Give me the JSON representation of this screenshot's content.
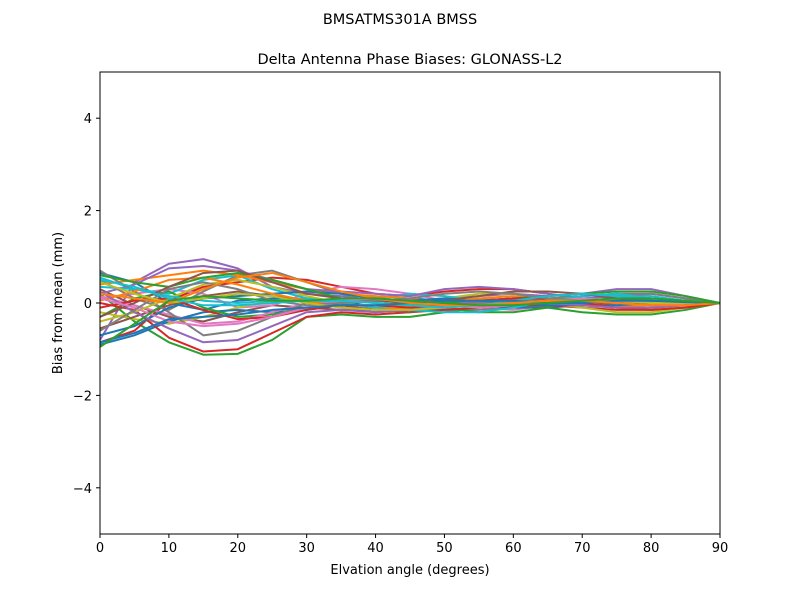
{
  "suptitle": "BMSATMS301A     BMSS",
  "chart_data": {
    "type": "line",
    "title": "Delta Antenna Phase Biases: GLONASS-L2",
    "xlabel": "Elvation angle (degrees)",
    "ylabel": "Bias from mean (mm)",
    "xlim": [
      0,
      90
    ],
    "ylim": [
      -5,
      5
    ],
    "xticks": [
      0,
      10,
      20,
      30,
      40,
      50,
      60,
      70,
      80,
      90
    ],
    "yticks": [
      -4,
      -2,
      0,
      2,
      4
    ],
    "ytick_labels": [
      "−4",
      "−2",
      "0",
      "2",
      "4"
    ],
    "grid": false,
    "legend": false,
    "x": [
      0,
      5,
      10,
      15,
      20,
      25,
      30,
      35,
      40,
      45,
      50,
      55,
      60,
      65,
      70,
      75,
      80,
      85,
      90
    ],
    "series": [
      {
        "values": [
          0.65,
          0.45,
          0.0,
          -0.15,
          0.05,
          0.1,
          0.05,
          -0.1,
          -0.2,
          -0.15,
          -0.05,
          0.05,
          0.1,
          0.05,
          -0.05,
          -0.1,
          -0.1,
          -0.05,
          0.0
        ],
        "color": "#1f77b4"
      },
      {
        "values": [
          0.2,
          -0.4,
          -0.85,
          -1.12,
          -1.1,
          -0.8,
          -0.3,
          -0.25,
          -0.3,
          -0.3,
          -0.2,
          -0.1,
          -0.05,
          -0.1,
          -0.2,
          -0.25,
          -0.25,
          -0.15,
          0.0
        ],
        "color": "#2ca02c"
      },
      {
        "values": [
          -0.85,
          -0.6,
          0.05,
          0.35,
          0.45,
          0.55,
          0.5,
          0.35,
          0.2,
          0.15,
          0.25,
          0.3,
          0.3,
          0.2,
          0.1,
          0.05,
          0.05,
          0.02,
          0.0
        ],
        "color": "#d62728"
      },
      {
        "values": [
          -0.8,
          0.45,
          0.85,
          0.95,
          0.75,
          0.35,
          0.2,
          0.15,
          0.05,
          0.05,
          0.1,
          0.15,
          0.2,
          0.15,
          0.2,
          0.3,
          0.3,
          0.15,
          0.0
        ],
        "color": "#9467bd"
      },
      {
        "values": [
          0.3,
          -0.05,
          -0.3,
          -0.4,
          -0.2,
          -0.05,
          -0.1,
          -0.15,
          -0.1,
          0.0,
          0.05,
          0.0,
          -0.05,
          0.0,
          0.05,
          0.1,
          0.1,
          0.05,
          0.0
        ],
        "color": "#8c564b"
      },
      {
        "values": [
          0.1,
          0.2,
          0.3,
          0.2,
          -0.1,
          -0.05,
          0.2,
          0.35,
          0.3,
          0.2,
          0.05,
          -0.1,
          -0.15,
          -0.05,
          0.05,
          0.1,
          0.05,
          0.0,
          0.0
        ],
        "color": "#e377c2"
      },
      {
        "values": [
          0.5,
          0.1,
          -0.15,
          0.25,
          0.6,
          0.7,
          0.45,
          0.2,
          0.0,
          -0.1,
          -0.15,
          -0.15,
          -0.1,
          -0.05,
          0.0,
          0.0,
          -0.05,
          -0.05,
          0.0
        ],
        "color": "#7f7f7f"
      },
      {
        "values": [
          -0.2,
          -0.35,
          -0.45,
          -0.3,
          -0.1,
          0.05,
          0.1,
          0.0,
          -0.1,
          -0.05,
          0.1,
          0.2,
          0.2,
          0.1,
          0.0,
          -0.05,
          -0.05,
          0.0,
          0.0
        ],
        "color": "#bcbd22"
      },
      {
        "values": [
          0.55,
          0.3,
          0.2,
          0.5,
          0.6,
          0.3,
          0.1,
          0.05,
          0.1,
          0.2,
          0.15,
          0.05,
          0.0,
          0.05,
          0.15,
          0.2,
          0.15,
          0.05,
          0.0
        ],
        "color": "#17becf"
      },
      {
        "values": [
          -0.9,
          -0.7,
          -0.4,
          -0.2,
          -0.15,
          -0.2,
          -0.15,
          -0.05,
          0.05,
          0.1,
          0.05,
          -0.05,
          -0.1,
          -0.1,
          -0.05,
          0.0,
          0.05,
          0.02,
          0.0
        ],
        "color": "#1f77b4"
      },
      {
        "values": [
          0.4,
          0.5,
          0.6,
          0.7,
          0.6,
          0.45,
          0.3,
          0.2,
          0.15,
          0.1,
          0.0,
          -0.05,
          0.0,
          0.05,
          0.0,
          -0.05,
          -0.1,
          -0.05,
          0.0
        ],
        "color": "#ff7f0e"
      },
      {
        "values": [
          -0.3,
          0.1,
          0.25,
          -0.1,
          -0.3,
          -0.25,
          -0.1,
          0.0,
          0.05,
          0.0,
          -0.1,
          -0.2,
          -0.2,
          -0.1,
          0.05,
          0.1,
          0.05,
          0.0,
          0.0
        ],
        "color": "#2ca02c"
      },
      {
        "values": [
          0.0,
          -0.15,
          -0.75,
          -1.05,
          -1.0,
          -0.65,
          -0.3,
          -0.2,
          -0.25,
          -0.2,
          -0.15,
          -0.1,
          -0.05,
          -0.05,
          -0.1,
          -0.15,
          -0.15,
          -0.1,
          0.0
        ],
        "color": "#d62728"
      },
      {
        "values": [
          0.2,
          0.4,
          0.75,
          0.8,
          0.7,
          0.5,
          0.3,
          0.25,
          0.2,
          0.15,
          0.3,
          0.35,
          0.3,
          0.2,
          0.1,
          0.15,
          0.2,
          0.1,
          0.0
        ],
        "color": "#9467bd"
      },
      {
        "values": [
          -0.55,
          -0.3,
          -0.05,
          0.15,
          0.25,
          0.15,
          0.05,
          -0.05,
          -0.15,
          -0.2,
          -0.1,
          0.0,
          0.05,
          0.0,
          -0.05,
          0.0,
          0.0,
          0.0,
          0.0
        ],
        "color": "#8c564b"
      },
      {
        "values": [
          0.15,
          -0.05,
          -0.25,
          -0.45,
          -0.4,
          -0.2,
          0.0,
          0.05,
          0.0,
          -0.1,
          -0.1,
          0.0,
          0.1,
          0.1,
          0.05,
          0.0,
          -0.05,
          0.0,
          0.0
        ],
        "color": "#e377c2"
      },
      {
        "values": [
          0.7,
          0.25,
          -0.2,
          -0.7,
          -0.6,
          -0.3,
          0.0,
          0.1,
          0.1,
          0.05,
          0.0,
          0.0,
          0.05,
          0.1,
          0.15,
          0.2,
          0.2,
          0.1,
          0.0
        ],
        "color": "#7f7f7f"
      },
      {
        "values": [
          -0.4,
          -0.2,
          0.1,
          0.4,
          0.5,
          0.35,
          0.15,
          0.0,
          -0.1,
          -0.05,
          0.05,
          0.1,
          0.05,
          0.0,
          -0.1,
          -0.2,
          -0.2,
          -0.1,
          0.0
        ],
        "color": "#bcbd22"
      },
      {
        "values": [
          0.35,
          0.3,
          0.15,
          0.05,
          0.0,
          0.05,
          0.1,
          0.0,
          -0.1,
          -0.15,
          -0.2,
          -0.2,
          -0.1,
          0.05,
          0.15,
          0.2,
          0.1,
          0.05,
          0.0
        ],
        "color": "#17becf"
      },
      {
        "values": [
          -0.7,
          -0.5,
          -0.1,
          0.1,
          0.15,
          0.2,
          0.25,
          0.2,
          0.1,
          0.05,
          0.1,
          0.05,
          0.0,
          -0.05,
          -0.05,
          -0.05,
          0.0,
          0.0,
          0.0
        ],
        "color": "#1f77b4"
      },
      {
        "values": [
          0.05,
          0.25,
          0.5,
          0.55,
          0.4,
          0.2,
          0.05,
          -0.1,
          -0.15,
          -0.1,
          0.0,
          0.1,
          0.15,
          0.1,
          0.0,
          -0.1,
          -0.1,
          -0.05,
          0.0
        ],
        "color": "#ff7f0e"
      },
      {
        "values": [
          0.6,
          0.45,
          0.35,
          0.55,
          0.65,
          0.5,
          0.3,
          0.1,
          0.0,
          -0.05,
          0.0,
          0.05,
          0.1,
          0.15,
          0.2,
          0.25,
          0.25,
          0.15,
          0.0
        ],
        "color": "#2ca02c"
      },
      {
        "values": [
          -0.1,
          0.05,
          0.1,
          -0.15,
          -0.35,
          -0.3,
          -0.15,
          -0.05,
          -0.05,
          -0.1,
          -0.05,
          0.05,
          0.1,
          0.1,
          0.0,
          -0.1,
          -0.15,
          -0.1,
          0.0
        ],
        "color": "#d62728"
      },
      {
        "values": [
          0.25,
          -0.2,
          -0.55,
          -0.85,
          -0.8,
          -0.5,
          -0.2,
          -0.15,
          -0.2,
          -0.15,
          -0.05,
          0.05,
          0.05,
          0.0,
          -0.05,
          -0.1,
          -0.1,
          -0.05,
          0.0
        ],
        "color": "#9467bd"
      },
      {
        "values": [
          -0.3,
          0.0,
          0.35,
          0.65,
          0.7,
          0.45,
          0.2,
          0.1,
          0.05,
          0.0,
          0.05,
          0.15,
          0.25,
          0.25,
          0.2,
          0.1,
          0.0,
          0.0,
          0.0
        ],
        "color": "#8c564b"
      },
      {
        "values": [
          0.1,
          -0.1,
          -0.4,
          -0.5,
          -0.45,
          -0.3,
          -0.1,
          0.05,
          0.1,
          0.05,
          -0.05,
          -0.1,
          -0.05,
          0.05,
          0.1,
          0.05,
          0.0,
          0.0,
          0.0
        ],
        "color": "#e377c2"
      },
      {
        "values": [
          -0.6,
          -0.15,
          0.3,
          0.45,
          0.3,
          0.05,
          -0.05,
          0.0,
          0.05,
          0.1,
          0.2,
          0.25,
          0.2,
          0.1,
          0.05,
          0.05,
          0.05,
          0.02,
          0.0
        ],
        "color": "#7f7f7f"
      },
      {
        "values": [
          0.45,
          0.2,
          0.0,
          0.1,
          0.2,
          0.15,
          0.0,
          -0.1,
          -0.15,
          -0.15,
          -0.1,
          -0.05,
          0.0,
          0.05,
          0.05,
          0.05,
          0.0,
          0.0,
          0.0
        ],
        "color": "#bcbd22"
      },
      {
        "values": [
          0.5,
          0.35,
          0.1,
          -0.05,
          -0.05,
          0.0,
          0.05,
          0.05,
          0.0,
          -0.05,
          -0.1,
          -0.05,
          0.05,
          0.15,
          0.2,
          0.15,
          0.1,
          0.05,
          0.0
        ],
        "color": "#17becf"
      },
      {
        "values": [
          -0.85,
          -0.65,
          -0.35,
          -0.3,
          -0.25,
          -0.15,
          -0.1,
          -0.05,
          -0.05,
          0.0,
          0.05,
          0.05,
          0.05,
          0.0,
          0.0,
          0.05,
          0.05,
          0.02,
          0.0
        ],
        "color": "#1f77b4"
      },
      {
        "values": [
          0.2,
          0.1,
          0.0,
          0.3,
          0.55,
          0.65,
          0.45,
          0.25,
          0.1,
          0.0,
          -0.05,
          -0.05,
          0.0,
          0.05,
          0.05,
          0.0,
          -0.05,
          -0.05,
          0.0
        ],
        "color": "#ff7f0e"
      },
      {
        "values": [
          -0.95,
          -0.45,
          0.05,
          0.15,
          0.1,
          0.05,
          0.05,
          0.1,
          0.1,
          0.05,
          0.0,
          -0.05,
          -0.05,
          0.0,
          0.05,
          0.1,
          0.1,
          0.05,
          0.0
        ],
        "color": "#2ca02c"
      }
    ]
  }
}
